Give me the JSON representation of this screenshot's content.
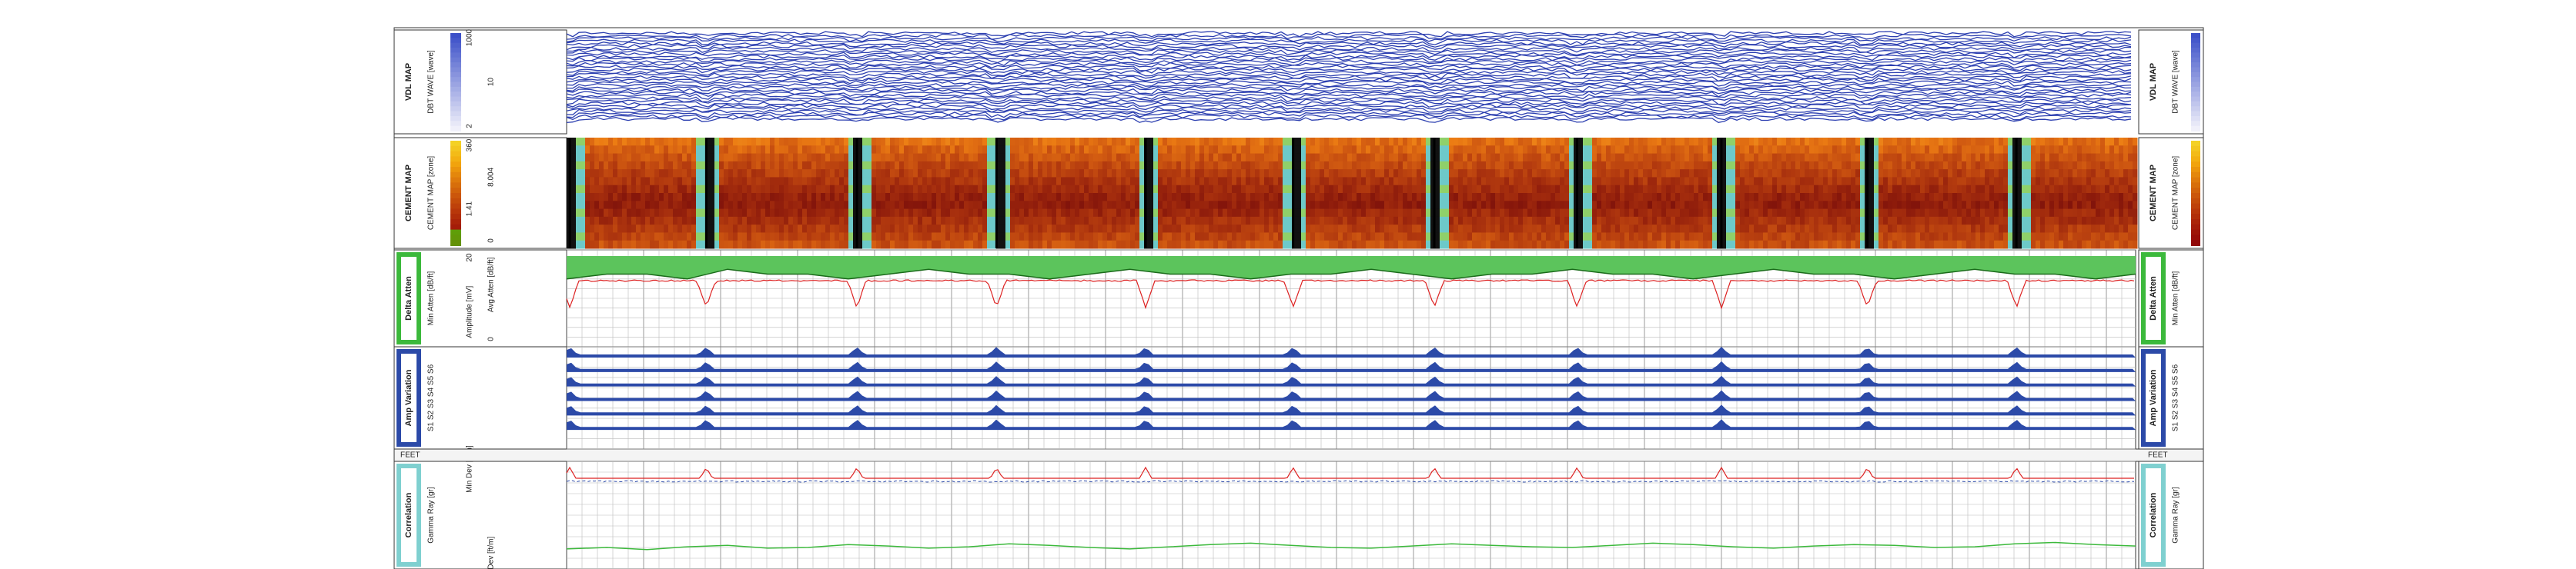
{
  "panels": [
    {
      "title": "VDL MAP",
      "curve": "DBT WAVE [wave]",
      "scale": [
        "1000",
        "10",
        "2"
      ]
    },
    {
      "title": "CEMENT MAP",
      "curve": "CEMENT MAP [zone]",
      "scale": [
        "360",
        "8.004",
        "1.41",
        "0"
      ]
    },
    {
      "title": "Delta Atten",
      "curve": "Min Atten [dB/ft]",
      "scale": [
        "20",
        "Avg Atten [dB/ft]",
        "Amplitude [mV]",
        "0"
      ]
    },
    {
      "title": "Amp Variation",
      "curve": "S1 S2 S3 S4 S5 S6",
      "scale": []
    },
    {
      "title": "Correlation",
      "curve": "Gamma Ray [gr]",
      "scale": [
        "Min Dev [ft/m]",
        "Max Dev [ft/m]"
      ]
    }
  ],
  "depth_unit": "FEET",
  "track": {
    "xlim": [
      0,
      100
    ],
    "collars": [
      0.2,
      8.9,
      18.5,
      27.4,
      36.9,
      46.3,
      55.3,
      64.4,
      73.6,
      82.9,
      92.4
    ],
    "gamma_lim": [
      0,
      150
    ],
    "gamma": [
      28,
      30,
      27,
      31,
      33,
      29,
      30,
      34,
      32,
      29,
      31,
      35,
      33,
      30,
      28,
      31,
      34,
      36,
      33,
      30,
      29,
      32,
      35,
      33,
      31,
      30,
      33,
      36,
      34,
      31,
      29,
      32,
      34,
      33,
      30,
      31,
      35,
      37,
      34,
      32
    ],
    "atten_lim": [
      0,
      20
    ],
    "atten": [
      14,
      15,
      15,
      14,
      16,
      15,
      15,
      14,
      15,
      16,
      15,
      15,
      14,
      15,
      16,
      15,
      15,
      14,
      15,
      15,
      16,
      15,
      14,
      15,
      15,
      16,
      15,
      15,
      14,
      15,
      16,
      15,
      15,
      14,
      15,
      16,
      15,
      15,
      14,
      15
    ]
  }
}
